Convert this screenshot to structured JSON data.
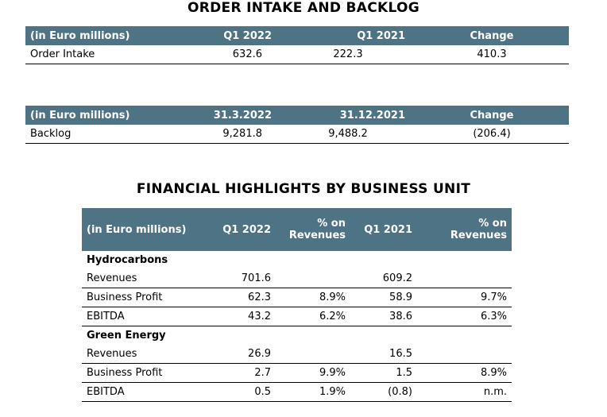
{
  "order_section": {
    "title": "ORDER INTAKE AND BACKLOG",
    "intake_table": {
      "headers": [
        "(in Euro millions)",
        "Q1 2022",
        "Q1 2021",
        "Change"
      ],
      "row": {
        "label": "Order Intake",
        "v1": "632.6",
        "v2": "222.3",
        "change": "410.3"
      }
    },
    "backlog_table": {
      "headers": [
        "(in Euro millions)",
        "31.3.2022",
        "31.12.2021",
        "Change"
      ],
      "row": {
        "label": "Backlog",
        "v1": "9,281.8",
        "v2": "9,488.2",
        "change": "(206.4)"
      }
    }
  },
  "financial_section": {
    "title": "FINANCIAL HIGHLIGHTS BY BUSINESS UNIT",
    "headers": {
      "label": "(in Euro millions)",
      "q1_2022": "Q1 2022",
      "pct1": "% on Revenues",
      "q1_2021": "Q1 2021",
      "pct2": "% on Revenues"
    },
    "groups": [
      {
        "name": "Hydrocarbons",
        "rows": [
          {
            "label": "Revenues",
            "v1": "701.6",
            "p1": "",
            "v2": "609.2",
            "p2": ""
          },
          {
            "label": "Business Profit",
            "v1": "62.3",
            "p1": "8.9%",
            "v2": "58.9",
            "p2": "9.7%"
          },
          {
            "label": "EBITDA",
            "v1": "43.2",
            "p1": "6.2%",
            "v2": "38.6",
            "p2": "6.3%"
          }
        ]
      },
      {
        "name": "Green Energy",
        "rows": [
          {
            "label": "Revenues",
            "v1": "26.9",
            "p1": "",
            "v2": "16.5",
            "p2": ""
          },
          {
            "label": "Business Profit",
            "v1": "2.7",
            "p1": "9.9%",
            "v2": "1.5",
            "p2": "8.9%"
          },
          {
            "label": "EBITDA",
            "v1": "0.5",
            "p1": "1.9%",
            "v2": "(0.8)",
            "p2": "n.m."
          }
        ]
      }
    ]
  }
}
